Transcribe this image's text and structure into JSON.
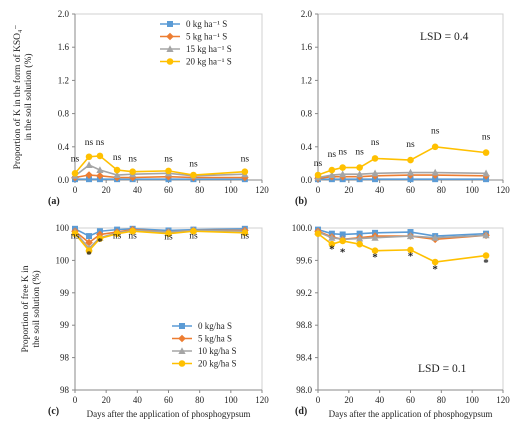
{
  "chart_data": [
    {
      "panel": "(a)",
      "type": "line",
      "ylabel": "Proportion of K in the form of KSO₄⁻ in the soil solution (%)",
      "xlabel": "",
      "xlim": [
        0,
        120
      ],
      "ylim": [
        0,
        2
      ],
      "xticks": [
        "0",
        "20",
        "40",
        "60",
        "80",
        "100",
        "120"
      ],
      "yticks": [
        "0.0",
        "0.4",
        "0.8",
        "1.2",
        "1.6",
        "2.0"
      ],
      "grid": false,
      "legend_position": "top-center",
      "lsd_label": "",
      "x": [
        0,
        9,
        16,
        27,
        37,
        60,
        76,
        109
      ],
      "series": [
        {
          "name": "0 kg ha⁻¹ S",
          "color": "#5b9bd5",
          "marker": "square",
          "values": [
            0.01,
            0.01,
            0.01,
            0.01,
            0.01,
            0.01,
            0.01,
            0.01
          ]
        },
        {
          "name": "5 kg ha⁻¹ S",
          "color": "#ed7d31",
          "marker": "diamond",
          "values": [
            0.03,
            0.06,
            0.05,
            0.03,
            0.03,
            0.04,
            0.03,
            0.03
          ]
        },
        {
          "name": "15 kg ha⁻¹ S",
          "color": "#a5a5a5",
          "marker": "triangle",
          "values": [
            0.05,
            0.18,
            0.12,
            0.06,
            0.07,
            0.08,
            0.05,
            0.07
          ]
        },
        {
          "name": "20 kg ha⁻¹ S",
          "color": "#ffc000",
          "marker": "circle",
          "values": [
            0.08,
            0.28,
            0.29,
            0.12,
            0.1,
            0.11,
            0.06,
            0.1
          ]
        }
      ],
      "annotations": [
        {
          "x": 0,
          "y": 0.22,
          "text": "ns"
        },
        {
          "x": 9,
          "y": 0.42,
          "text": "ns"
        },
        {
          "x": 16,
          "y": 0.42,
          "text": "ns"
        },
        {
          "x": 27,
          "y": 0.24,
          "text": "ns"
        },
        {
          "x": 37,
          "y": 0.22,
          "text": "ns"
        },
        {
          "x": 60,
          "y": 0.22,
          "text": "ns"
        },
        {
          "x": 76,
          "y": 0.16,
          "text": "ns"
        },
        {
          "x": 109,
          "y": 0.22,
          "text": "ns"
        }
      ]
    },
    {
      "panel": "(b)",
      "type": "line",
      "ylabel": "",
      "xlabel": "",
      "xlim": [
        0,
        120
      ],
      "ylim": [
        0,
        2
      ],
      "xticks": [
        "0",
        "20",
        "40",
        "60",
        "80",
        "100",
        "120"
      ],
      "yticks": [
        "0.0",
        "0.4",
        "0.8",
        "1.2",
        "1.6",
        "2.0"
      ],
      "grid": false,
      "lsd_label": "LSD = 0.4",
      "x": [
        0,
        9,
        16,
        27,
        37,
        60,
        76,
        109
      ],
      "series": [
        {
          "name": "0 kg ha⁻¹ S",
          "color": "#5b9bd5",
          "marker": "square",
          "values": [
            0.01,
            0.01,
            0.01,
            0.01,
            0.01,
            0.01,
            0.01,
            0.01
          ]
        },
        {
          "name": "5 kg ha⁻¹ S",
          "color": "#ed7d31",
          "marker": "diamond",
          "values": [
            0.02,
            0.04,
            0.04,
            0.04,
            0.05,
            0.06,
            0.06,
            0.05
          ]
        },
        {
          "name": "15 kg ha⁻¹ S",
          "color": "#a5a5a5",
          "marker": "triangle",
          "values": [
            0.03,
            0.06,
            0.07,
            0.07,
            0.08,
            0.09,
            0.09,
            0.08
          ]
        },
        {
          "name": "20 kg ha⁻¹ S",
          "color": "#ffc000",
          "marker": "circle",
          "values": [
            0.06,
            0.12,
            0.15,
            0.15,
            0.26,
            0.24,
            0.4,
            0.33
          ]
        }
      ],
      "annotations": [
        {
          "x": 0,
          "y": 0.17,
          "text": "ns"
        },
        {
          "x": 9,
          "y": 0.28,
          "text": "ns"
        },
        {
          "x": 16,
          "y": 0.31,
          "text": "ns"
        },
        {
          "x": 27,
          "y": 0.31,
          "text": "ns"
        },
        {
          "x": 37,
          "y": 0.42,
          "text": "ns"
        },
        {
          "x": 60,
          "y": 0.4,
          "text": "ns"
        },
        {
          "x": 76,
          "y": 0.56,
          "text": "ns"
        },
        {
          "x": 109,
          "y": 0.49,
          "text": "ns"
        }
      ]
    },
    {
      "panel": "(c)",
      "type": "line",
      "ylabel": "Proportion of free K in the soil solution (%)",
      "xlabel": "Days after the application of phosphogypsum",
      "xlim": [
        0,
        120
      ],
      "ylim": [
        98,
        100
      ],
      "xticks": [
        "0",
        "20",
        "40",
        "60",
        "80",
        "100",
        "120"
      ],
      "yticks": [
        "98",
        "98",
        "99",
        "99",
        "100",
        "100"
      ],
      "grid": false,
      "legend_position": "bottom-center",
      "lsd_label": "",
      "x": [
        0,
        9,
        16,
        27,
        37,
        60,
        76,
        109
      ],
      "series": [
        {
          "name": "0 kg/ha S",
          "color": "#5b9bd5",
          "marker": "square",
          "values": [
            99.99,
            99.9,
            99.96,
            99.98,
            99.99,
            99.97,
            99.98,
            99.99
          ]
        },
        {
          "name": "5 kg/ha S",
          "color": "#ed7d31",
          "marker": "diamond",
          "values": [
            99.96,
            99.82,
            99.92,
            99.95,
            99.98,
            99.95,
            99.97,
            99.97
          ]
        },
        {
          "name": "10 kg/ha S",
          "color": "#a5a5a5",
          "marker": "triangle",
          "values": [
            99.95,
            99.75,
            99.88,
            99.94,
            99.97,
            99.95,
            99.97,
            99.96
          ]
        },
        {
          "name": "20 kg/ha S",
          "color": "#ffc000",
          "marker": "circle",
          "values": [
            99.93,
            99.72,
            99.87,
            99.93,
            99.96,
            99.93,
            99.96,
            99.94
          ]
        }
      ],
      "annotations": [
        {
          "x": 0,
          "y": 99.87,
          "text": "ns"
        },
        {
          "x": 9,
          "y": 99.63,
          "text": "*"
        },
        {
          "x": 16,
          "y": 99.79,
          "text": "*"
        },
        {
          "x": 27,
          "y": 99.87,
          "text": "ns"
        },
        {
          "x": 37,
          "y": 99.87,
          "text": "ns"
        },
        {
          "x": 60,
          "y": 99.86,
          "text": "ns"
        },
        {
          "x": 76,
          "y": 99.87,
          "text": "ns"
        },
        {
          "x": 109,
          "y": 99.87,
          "text": "ns"
        }
      ]
    },
    {
      "panel": "(d)",
      "type": "line",
      "ylabel": "",
      "xlabel": "Days after the application of phosphogypsum",
      "xlim": [
        0,
        120
      ],
      "ylim": [
        98,
        100
      ],
      "xticks": [
        "0",
        "20",
        "40",
        "60",
        "80",
        "100",
        "120"
      ],
      "yticks": [
        "98.0",
        "98.4",
        "98.8",
        "99.2",
        "99.6",
        "100.0"
      ],
      "grid": false,
      "lsd_label": "LSD = 0.1",
      "x": [
        0,
        9,
        16,
        27,
        37,
        60,
        76,
        109
      ],
      "series": [
        {
          "name": "0 kg/ha S",
          "color": "#5b9bd5",
          "marker": "square",
          "values": [
            99.98,
            99.93,
            99.92,
            99.93,
            99.94,
            99.95,
            99.9,
            99.93
          ]
        },
        {
          "name": "5 kg/ha S",
          "color": "#ed7d31",
          "marker": "diamond",
          "values": [
            99.96,
            99.89,
            99.86,
            99.88,
            99.9,
            99.9,
            99.86,
            99.91
          ]
        },
        {
          "name": "10 kg/ha S",
          "color": "#a5a5a5",
          "marker": "triangle",
          "values": [
            99.95,
            99.88,
            99.86,
            99.87,
            99.88,
            99.9,
            99.88,
            99.91
          ]
        },
        {
          "name": "20 kg/ha S",
          "color": "#ffc000",
          "marker": "circle",
          "values": [
            99.93,
            99.8,
            99.84,
            99.8,
            99.72,
            99.73,
            99.58,
            99.66
          ]
        }
      ],
      "annotations": [
        {
          "x": 9,
          "y": 99.7,
          "text": "*"
        },
        {
          "x": 16,
          "y": 99.66,
          "text": "*"
        },
        {
          "x": 37,
          "y": 99.6,
          "text": "*"
        },
        {
          "x": 60,
          "y": 99.61,
          "text": "*"
        },
        {
          "x": 76,
          "y": 99.45,
          "text": "*"
        },
        {
          "x": 109,
          "y": 99.53,
          "text": "*"
        }
      ]
    }
  ]
}
